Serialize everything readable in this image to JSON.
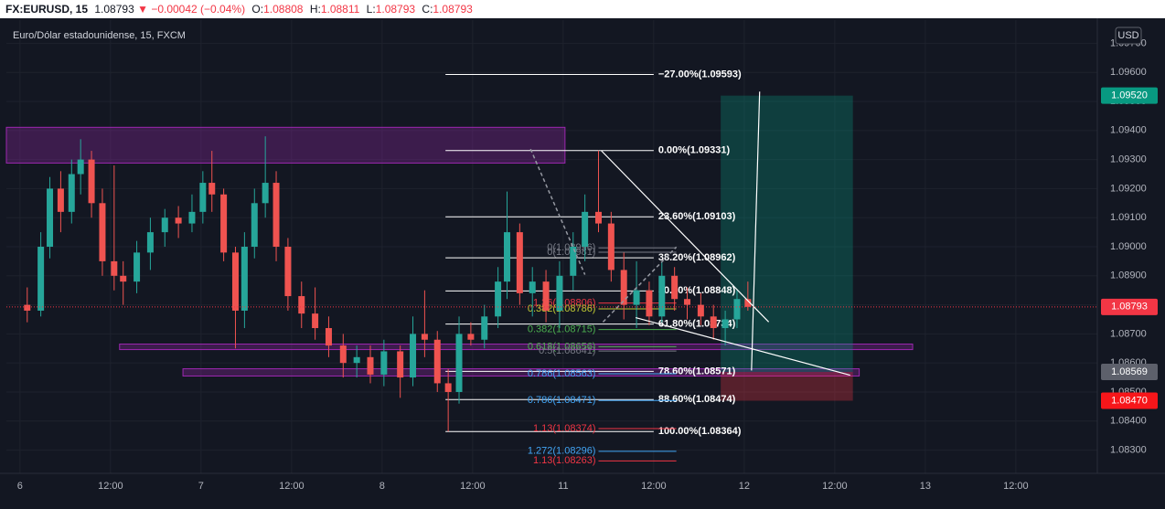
{
  "header": {
    "symbol": "FX:EURUSD, 15",
    "last": "1.08793",
    "change": "▼ −0.00042 (−0.04%)",
    "open_label": "O:",
    "open": "1.08808",
    "high_label": "H:",
    "high": "1.08811",
    "low_label": "L:",
    "low": "1.08793",
    "close_label": "C:",
    "close": "1.08793"
  },
  "chart_data": {
    "type": "candlestick",
    "title": "Euro/Dólar estadounidense, 15, FXCM",
    "currency": "USD",
    "xlim": [
      -0.15,
      11.9
    ],
    "xticks": [
      {
        "value": 0,
        "label": "6"
      },
      {
        "value": 1,
        "label": "12:00"
      },
      {
        "value": 2,
        "label": "7"
      },
      {
        "value": 3,
        "label": "12:00"
      },
      {
        "value": 4,
        "label": "8"
      },
      {
        "value": 5,
        "label": "12:00"
      },
      {
        "value": 6,
        "label": "11"
      },
      {
        "value": 7,
        "label": "12:00"
      },
      {
        "value": 8,
        "label": "12"
      },
      {
        "value": 9,
        "label": "12:00"
      },
      {
        "value": 10,
        "label": "13"
      },
      {
        "value": 11,
        "label": "12:00"
      }
    ],
    "ylim": [
      1.0822,
      1.0978
    ],
    "yticks": [
      {
        "value": 1.097,
        "label": "1.09700"
      },
      {
        "value": 1.096,
        "label": "1.09600"
      },
      {
        "value": 1.095,
        "label": "1.09500"
      },
      {
        "value": 1.094,
        "label": "1.09400"
      },
      {
        "value": 1.093,
        "label": "1.09300"
      },
      {
        "value": 1.092,
        "label": "1.09200"
      },
      {
        "value": 1.091,
        "label": "1.09100"
      },
      {
        "value": 1.09,
        "label": "1.09000"
      },
      {
        "value": 1.089,
        "label": "1.08900"
      },
      {
        "value": 1.088,
        "label": "1.08800"
      },
      {
        "value": 1.087,
        "label": "1.08700"
      },
      {
        "value": 1.086,
        "label": "1.08600"
      },
      {
        "value": 1.085,
        "label": "1.08500"
      },
      {
        "value": 1.084,
        "label": "1.08400"
      },
      {
        "value": 1.083,
        "label": "1.08300"
      }
    ],
    "grid": true,
    "up_color": "#26a69a",
    "down_color": "#ef5350",
    "candles": {
      "x": [
        0.08,
        0.23,
        0.33,
        0.45,
        0.57,
        0.67,
        0.79,
        0.91,
        1.04,
        1.14,
        1.29,
        1.44,
        1.6,
        1.75,
        1.9,
        2.02,
        2.12,
        2.25,
        2.38,
        2.48,
        2.59,
        2.71,
        2.83,
        2.96,
        3.11,
        3.26,
        3.41,
        3.57,
        3.72,
        3.87,
        4.02,
        4.2,
        4.34,
        4.47,
        4.61,
        4.73,
        4.85,
        4.98,
        5.13,
        5.28,
        5.38,
        5.52,
        5.66,
        5.81,
        5.96,
        6.11,
        6.24,
        6.39,
        6.53,
        6.67,
        6.81,
        6.95,
        7.09,
        7.23,
        7.37,
        7.52,
        7.66,
        7.79,
        7.92,
        8.04
      ],
      "open": [
        1.088,
        1.0878,
        1.09,
        1.092,
        1.0912,
        1.0925,
        1.093,
        1.0915,
        1.0895,
        1.089,
        1.0888,
        1.0898,
        1.0905,
        1.091,
        1.0908,
        1.0912,
        1.0922,
        1.0918,
        1.0898,
        1.0878,
        1.09,
        1.0915,
        1.0922,
        1.09,
        1.0883,
        1.0877,
        1.0872,
        1.0866,
        1.086,
        1.0862,
        1.0856,
        1.0864,
        1.0855,
        1.087,
        1.0868,
        1.0853,
        1.085,
        1.087,
        1.0868,
        1.0876,
        1.0888,
        1.0905,
        1.0884,
        1.0888,
        1.0878,
        1.089,
        1.09,
        1.0912,
        1.0908,
        1.0892,
        1.088,
        1.0885,
        1.0876,
        1.089,
        1.0882,
        1.088,
        1.0876,
        1.0872,
        1.0875,
        1.0882
      ],
      "high": [
        1.0886,
        1.0905,
        1.0924,
        1.0926,
        1.093,
        1.0937,
        1.0933,
        1.092,
        1.0928,
        1.0895,
        1.0902,
        1.091,
        1.0913,
        1.0914,
        1.0918,
        1.0926,
        1.0933,
        1.092,
        1.09,
        1.0905,
        1.092,
        1.0938,
        1.0926,
        1.0903,
        1.0888,
        1.0886,
        1.0876,
        1.087,
        1.0866,
        1.0866,
        1.0868,
        1.0866,
        1.0876,
        1.0885,
        1.0871,
        1.0858,
        1.0876,
        1.0874,
        1.088,
        1.0893,
        1.0919,
        1.0908,
        1.0893,
        1.0892,
        1.0895,
        1.0905,
        1.0918,
        1.09331,
        1.0912,
        1.0898,
        1.0895,
        1.0888,
        1.0895,
        1.0893,
        1.0886,
        1.0884,
        1.088,
        1.0878,
        1.0885,
        1.0888
      ],
      "low": [
        1.0874,
        1.0876,
        1.0896,
        1.0905,
        1.0908,
        1.0918,
        1.091,
        1.089,
        1.0885,
        1.088,
        1.0884,
        1.0892,
        1.09,
        1.0903,
        1.0905,
        1.0908,
        1.0912,
        1.0895,
        1.0865,
        1.0872,
        1.0896,
        1.091,
        1.0895,
        1.0878,
        1.0872,
        1.0868,
        1.0862,
        1.0855,
        1.0855,
        1.0853,
        1.0852,
        1.0848,
        1.0852,
        1.0862,
        1.085,
        1.08364,
        1.0846,
        1.0866,
        1.0865,
        1.0872,
        1.0882,
        1.088,
        1.0876,
        1.0874,
        1.0872,
        1.0885,
        1.0895,
        1.0905,
        1.0888,
        1.0875,
        1.0872,
        1.0873,
        1.0874,
        1.0878,
        1.0875,
        1.0873,
        1.0868,
        1.0866,
        1.0872,
        1.0878
      ],
      "close": [
        1.0878,
        1.09,
        1.092,
        1.0912,
        1.0925,
        1.093,
        1.0915,
        1.0895,
        1.089,
        1.0888,
        1.0898,
        1.0905,
        1.091,
        1.0908,
        1.0912,
        1.0922,
        1.0918,
        1.0898,
        1.0878,
        1.09,
        1.0915,
        1.0922,
        1.09,
        1.0883,
        1.0877,
        1.0872,
        1.0866,
        1.086,
        1.0862,
        1.0856,
        1.0864,
        1.0855,
        1.087,
        1.0868,
        1.0853,
        1.085,
        1.087,
        1.0868,
        1.0876,
        1.0888,
        1.0905,
        1.0884,
        1.0888,
        1.0878,
        1.089,
        1.09,
        1.0912,
        1.0908,
        1.0892,
        1.088,
        1.0885,
        1.0876,
        1.089,
        1.0882,
        1.088,
        1.0876,
        1.0872,
        1.0875,
        1.0882,
        1.08793
      ]
    },
    "last_price": {
      "value": 1.08793,
      "label": "1.08793",
      "color": "#f23645"
    },
    "price_labels": [
      {
        "value": 1.0952,
        "label": "1.09520",
        "color": "#089981"
      },
      {
        "value": 1.08569,
        "label": "1.08569",
        "color": "#5d606b"
      },
      {
        "value": 1.0847,
        "label": "1.08470",
        "color": "#f7161a"
      }
    ],
    "zone_color": "#9c27b0",
    "zones": [
      {
        "x": [
          -0.15,
          6.02
        ],
        "y": [
          1.09411,
          1.09288
        ]
      },
      {
        "x": [
          1.1,
          9.86
        ],
        "y": [
          1.08665,
          1.08646
        ]
      },
      {
        "x": [
          1.8,
          9.27
        ],
        "y": [
          1.0858,
          1.08555
        ]
      }
    ],
    "position": {
      "x": [
        7.74,
        9.2
      ],
      "entry": 1.08569,
      "target": 1.0952,
      "stop": 1.0847
    },
    "fib": {
      "x": [
        4.7,
        7.0
      ],
      "color": "#ffffff",
      "levels": [
        {
          "label": "−27.00%(1.09593)",
          "price": 1.09593
        },
        {
          "label": "0.00%(1.09331)",
          "price": 1.09331
        },
        {
          "label": "23.60%(1.09103)",
          "price": 1.09103
        },
        {
          "label": "38.20%(1.08962)",
          "price": 1.08962
        },
        {
          "label": "50.00%(1.08848)",
          "price": 1.08848
        },
        {
          "label": "61.80%(1.08734)",
          "price": 1.08734
        },
        {
          "label": "78.60%(1.08571)",
          "price": 1.08571
        },
        {
          "label": "88.60%(1.08474)",
          "price": 1.08474
        },
        {
          "label": "100.00%(1.08364)",
          "price": 1.08364
        }
      ]
    },
    "fib_ext": {
      "x": [
        6.39,
        7.25
      ],
      "levels": [
        {
          "label": "0(1.08996)",
          "price": 1.08996,
          "color": "#787b86"
        },
        {
          "label": "0(1.08981)",
          "price": 1.08981,
          "color": "#787b86"
        },
        {
          "label": "1.36(1.08806)",
          "price": 1.08806,
          "color": "#f23645"
        },
        {
          "label": "0.382(1.08786)",
          "price": 1.08786,
          "color": "#c0ca33"
        },
        {
          "label": "0.382(1.08715)",
          "price": 1.08715,
          "color": "#4caf50"
        },
        {
          "label": "0.618(1.08656)",
          "price": 1.08656,
          "color": "#4caf50"
        },
        {
          "label": "0.5(1.08641)",
          "price": 1.08641,
          "color": "#787b86"
        },
        {
          "label": "0.786(1.08563)",
          "price": 1.08563,
          "color": "#42a5f5"
        },
        {
          "label": "0.786(1.08471)",
          "price": 1.08471,
          "color": "#42a5f5"
        },
        {
          "label": "1.13(1.08374)",
          "price": 1.08374,
          "color": "#f23645"
        },
        {
          "label": "1.272(1.08296)",
          "price": 1.08296,
          "color": "#42a5f5"
        },
        {
          "label": "1.13(1.08263)",
          "price": 1.08263,
          "color": "#f23645"
        }
      ]
    },
    "lines": [
      {
        "x": [
          6.42,
          8.27
        ],
        "y": [
          1.09331,
          1.08741
        ],
        "dashed": false
      },
      {
        "x": [
          6.8,
          9.17
        ],
        "y": [
          1.08756,
          1.08558
        ],
        "dashed": false
      },
      {
        "x": [
          8.08,
          8.17
        ],
        "y": [
          1.08574,
          1.09534
        ],
        "dashed": false
      },
      {
        "x": [
          5.64,
          6.24
        ],
        "y": [
          1.09336,
          1.08904
        ],
        "dashed": true
      },
      {
        "x": [
          6.44,
          7.25
        ],
        "y": [
          1.08741,
          1.08999
        ],
        "dashed": true
      }
    ]
  }
}
